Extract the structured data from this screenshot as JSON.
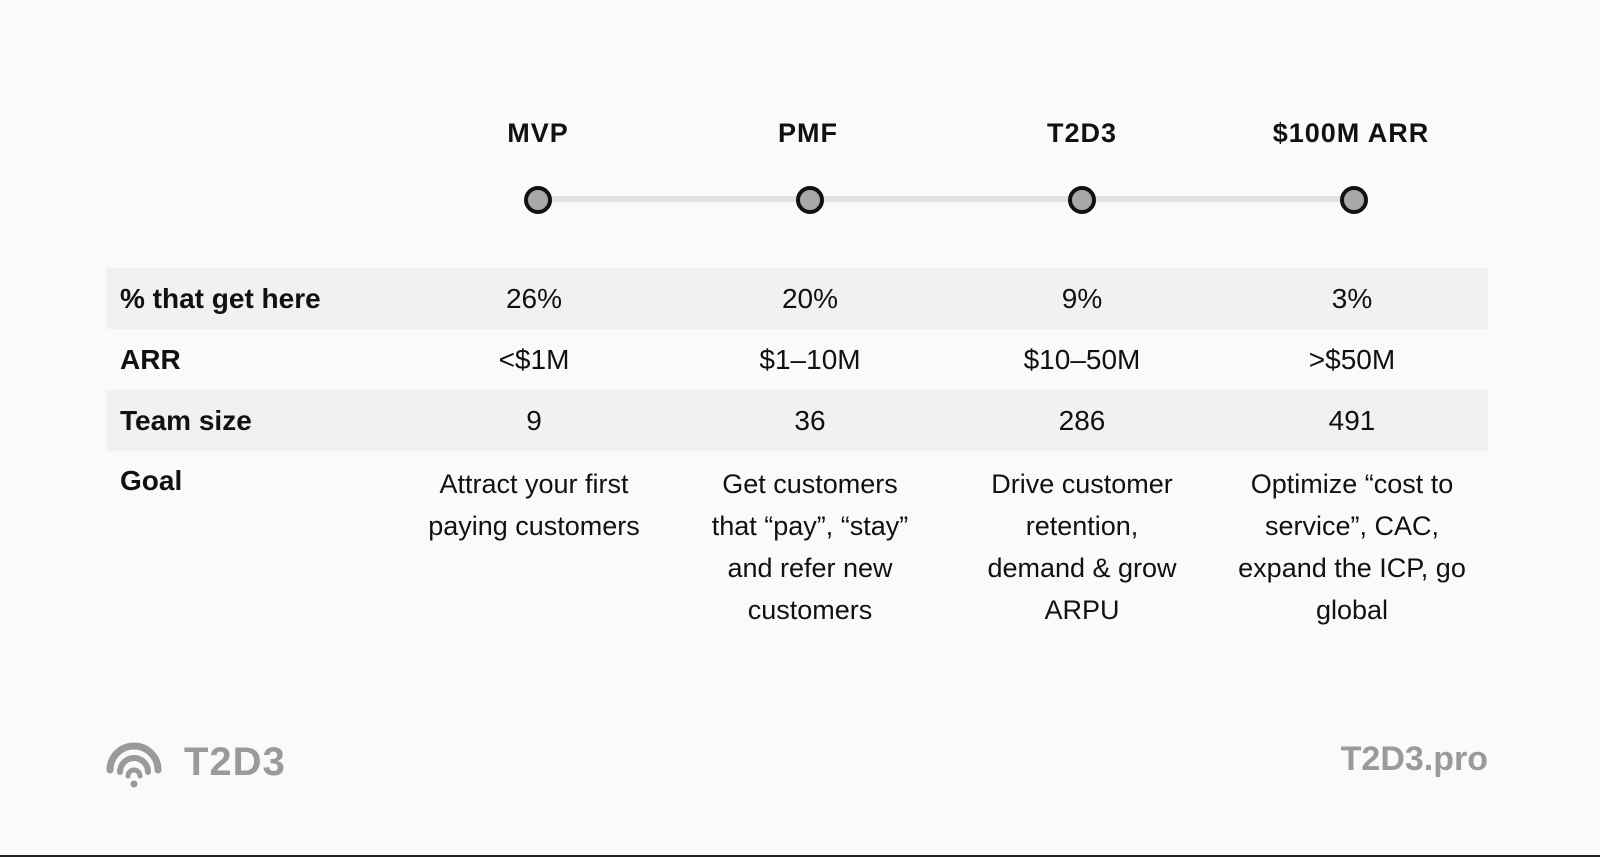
{
  "stages": [
    "MVP",
    "PMF",
    "T2D3",
    "$100M ARR"
  ],
  "rows": [
    {
      "label": "% that get here",
      "values": [
        "26%",
        "20%",
        "9%",
        "3%"
      ]
    },
    {
      "label": "ARR",
      "values": [
        "<$1M",
        "$1–10M",
        "$10–50M",
        ">$50M"
      ]
    },
    {
      "label": "Team size",
      "values": [
        "9",
        "36",
        "286",
        "491"
      ]
    }
  ],
  "goal": {
    "label": "Goal",
    "values": [
      [
        "Attract your first",
        "paying customers"
      ],
      [
        "Get customers",
        "that “pay”, “stay”",
        "and refer new",
        "customers"
      ],
      [
        "Drive customer",
        "retention,",
        "demand & grow",
        "ARPU"
      ],
      [
        "Optimize “cost to",
        "service”, CAC,",
        "expand the ICP, go",
        "global"
      ]
    ]
  },
  "footer": {
    "brand": "T2D3",
    "logo_icon": "wifi-signal-icon",
    "url": "T2D3.pro"
  },
  "colors": {
    "background": "#fafafa",
    "row_shade": "#f1f1f1",
    "dot_fill": "#a8a8a8",
    "timeline": "#e2e2e2",
    "footer_gray": "#9a9a9a"
  }
}
